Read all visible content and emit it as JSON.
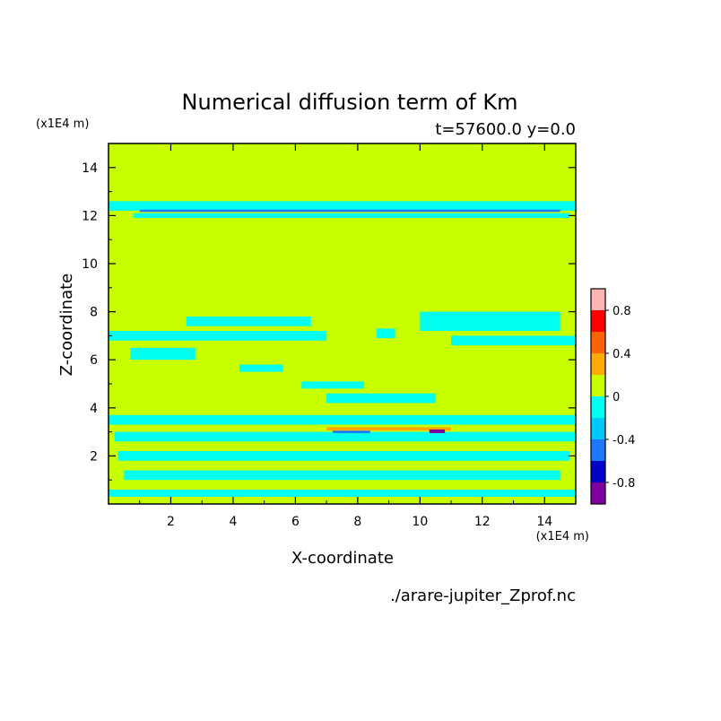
{
  "chart_data": {
    "type": "heatmap",
    "title": "Numerical diffusion term of Km",
    "subtitle": "t=57600.0 y=0.0",
    "xlabel": "X-coordinate",
    "ylabel": "Z-coordinate",
    "x_unit": "(x1E4 m)",
    "y_unit": "(x1E4 m)",
    "source_file": "./arare-jupiter_Zprof.nc",
    "xlim": [
      0,
      15
    ],
    "ylim": [
      0,
      15
    ],
    "x_ticks": [
      2,
      4,
      6,
      8,
      10,
      12,
      14
    ],
    "y_ticks": [
      2,
      4,
      6,
      8,
      10,
      12,
      14
    ],
    "colorbar": {
      "levels": [
        -1.0,
        -0.8,
        -0.6,
        -0.4,
        -0.2,
        0.0,
        0.2,
        0.4,
        0.6,
        0.8,
        1.0
      ],
      "colors": [
        "#7f00a0",
        "#0000c8",
        "#1e78ff",
        "#00c8ff",
        "#00fff0",
        "#c8ff00",
        "#ffaa00",
        "#ff6400",
        "#ff0000",
        "#ffb4b4"
      ],
      "tick_labels": [
        "-0.8",
        "-0.4",
        "0",
        "0.4",
        "0.8"
      ],
      "tick_values": [
        -0.8,
        -0.4,
        0.0,
        0.4,
        0.8
      ]
    },
    "background_level": 0.0,
    "bands": [
      {
        "z": [
          12.2,
          12.6
        ],
        "x": [
          0,
          15
        ],
        "level": -0.1
      },
      {
        "z": [
          11.9,
          12.1
        ],
        "x": [
          0.8,
          14.8
        ],
        "level": -0.1
      },
      {
        "z": [
          12.15,
          12.25
        ],
        "x": [
          1.0,
          14.5
        ],
        "level": -0.5
      },
      {
        "z": [
          6.8,
          7.2
        ],
        "x": [
          0,
          7.0
        ],
        "level": -0.1
      },
      {
        "z": [
          7.4,
          7.8
        ],
        "x": [
          2.5,
          6.5
        ],
        "level": -0.1
      },
      {
        "z": [
          6.0,
          6.5
        ],
        "x": [
          0.7,
          2.8
        ],
        "level": -0.1
      },
      {
        "z": [
          5.5,
          5.8
        ],
        "x": [
          4.2,
          5.6
        ],
        "level": -0.1
      },
      {
        "z": [
          7.2,
          8.0
        ],
        "x": [
          10.0,
          14.5
        ],
        "level": -0.1
      },
      {
        "z": [
          6.6,
          7.0
        ],
        "x": [
          11.0,
          15.0
        ],
        "level": -0.1
      },
      {
        "z": [
          6.9,
          7.3
        ],
        "x": [
          8.6,
          9.2
        ],
        "level": -0.1
      },
      {
        "z": [
          4.8,
          5.1
        ],
        "x": [
          6.2,
          8.2
        ],
        "level": -0.1
      },
      {
        "z": [
          4.2,
          4.6
        ],
        "x": [
          7.0,
          10.5
        ],
        "level": -0.1
      },
      {
        "z": [
          3.3,
          3.7
        ],
        "x": [
          0,
          15
        ],
        "level": -0.1
      },
      {
        "z": [
          2.6,
          3.0
        ],
        "x": [
          0.2,
          15
        ],
        "level": -0.1
      },
      {
        "z": [
          1.8,
          2.2
        ],
        "x": [
          0.3,
          14.8
        ],
        "level": -0.1
      },
      {
        "z": [
          1.0,
          1.4
        ],
        "x": [
          0.5,
          14.5
        ],
        "level": -0.1
      },
      {
        "z": [
          0.3,
          0.6
        ],
        "x": [
          0,
          15
        ],
        "level": -0.1
      },
      {
        "z": [
          3.05,
          3.2
        ],
        "x": [
          7.0,
          11.0
        ],
        "level": 0.3
      },
      {
        "z": [
          2.95,
          3.05
        ],
        "x": [
          7.2,
          8.4
        ],
        "level": -0.5
      },
      {
        "z": [
          2.95,
          3.1
        ],
        "x": [
          10.3,
          10.8
        ],
        "level": -0.9
      }
    ]
  }
}
